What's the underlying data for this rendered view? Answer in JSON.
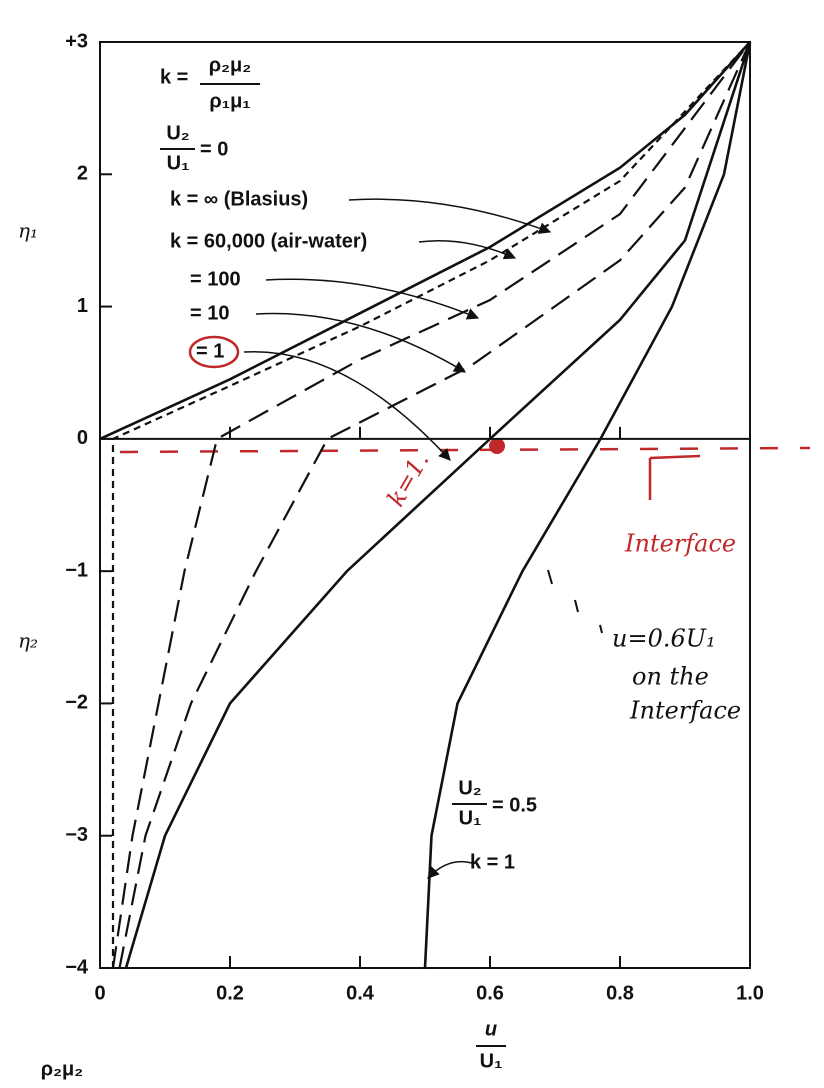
{
  "chart_data": {
    "type": "line",
    "x_label": "u",
    "x_label_denominator": "U₁",
    "y_label_upper": "η₁",
    "y_label_lower": "η₂",
    "annotations": [
      "k =",
      "ρ₂μ₂",
      "ρ₁μ₁",
      "U₂",
      "U₁",
      "= 0",
      "U₂",
      "U₁",
      "= 0.5",
      "ρ₂μ₂"
    ],
    "handwriting": [
      "k=1.",
      "Interface",
      "u=0.6U₁",
      "on the",
      "Interface"
    ],
    "xlim": [
      0,
      1.0
    ],
    "ylim": [
      -4,
      3
    ],
    "xticks": [
      0,
      0.2,
      0.4,
      0.6,
      0.8,
      {
        "value": 1.0,
        "label": "1.0"
      }
    ],
    "yticks": [
      {
        "value": -4,
        "label": "−4"
      },
      {
        "value": -3,
        "label": "−3"
      },
      {
        "value": -2,
        "label": "−2"
      },
      {
        "value": -1,
        "label": "−1"
      },
      0,
      1,
      2,
      {
        "value": 3,
        "label": "+3"
      }
    ],
    "series": [
      {
        "name": "k = ∞ (Blasius)",
        "color": "#111111",
        "dash": "solid",
        "x": [
          0,
          0.2,
          0.4,
          0.6,
          0.8,
          0.9,
          1.0
        ],
        "values": [
          0,
          0.45,
          0.95,
          1.45,
          2.05,
          2.45,
          3
        ]
      },
      {
        "name": "k = 60,000 (air-water)",
        "color": "#111111",
        "dash": "short",
        "x": [
          0.02,
          0.02,
          0.2,
          0.4,
          0.6,
          0.8,
          1.0
        ],
        "values": [
          -4,
          0,
          0.4,
          0.85,
          1.35,
          1.95,
          3
        ]
      },
      {
        "name": "= 100",
        "color": "#111111",
        "dash": "long",
        "x": [
          0.02,
          0.05,
          0.09,
          0.13,
          0.18,
          0.4,
          0.6,
          0.8,
          1.0
        ],
        "values": [
          -4,
          -3,
          -2,
          -1,
          0,
          0.6,
          1.05,
          1.7,
          3
        ]
      },
      {
        "name": "= 10",
        "color": "#111111",
        "dash": "long",
        "x": [
          0.03,
          0.07,
          0.14,
          0.24,
          0.35,
          0.57,
          0.8,
          0.9,
          1.0
        ],
        "values": [
          -4,
          -3,
          -2,
          -1,
          0,
          0.55,
          1.35,
          1.9,
          3
        ]
      },
      {
        "name": "= 1",
        "color": "#111111",
        "dash": "solid",
        "x": [
          0.04,
          0.1,
          0.2,
          0.38,
          0.6,
          0.8,
          0.9,
          1.0
        ],
        "values": [
          -4,
          -3,
          -2,
          -1,
          0,
          0.9,
          1.5,
          3
        ]
      },
      {
        "name": "k = 1",
        "color": "#111111",
        "dash": "solid",
        "x": [
          0.5,
          0.51,
          0.55,
          0.65,
          0.77,
          0.88,
          0.96,
          1.0
        ],
        "values": [
          -4,
          -3,
          -2,
          -1,
          0,
          1,
          2,
          3
        ]
      }
    ]
  }
}
